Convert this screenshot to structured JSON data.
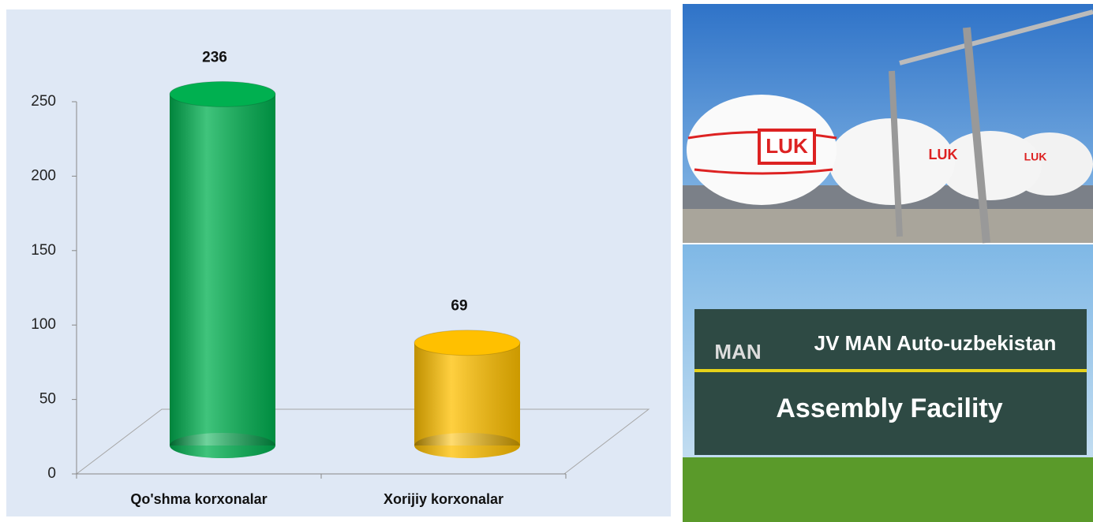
{
  "chart_data": {
    "type": "cylinder",
    "categories": [
      "Qo'shma korxonalar",
      "Xorijiy korxonalar"
    ],
    "values": [
      236,
      69
    ],
    "colors": [
      "#00b050",
      "#ffc000"
    ],
    "ylim": [
      0,
      250
    ],
    "yticks": [
      0,
      50,
      100,
      150,
      200,
      250
    ]
  },
  "photos": {
    "top": {
      "logo": "LUK"
    },
    "bottom": {
      "logo": "MAN",
      "sign_title": "JV MAN Auto-uzbekistan",
      "sign_subtitle": "Assembly Facility"
    }
  }
}
